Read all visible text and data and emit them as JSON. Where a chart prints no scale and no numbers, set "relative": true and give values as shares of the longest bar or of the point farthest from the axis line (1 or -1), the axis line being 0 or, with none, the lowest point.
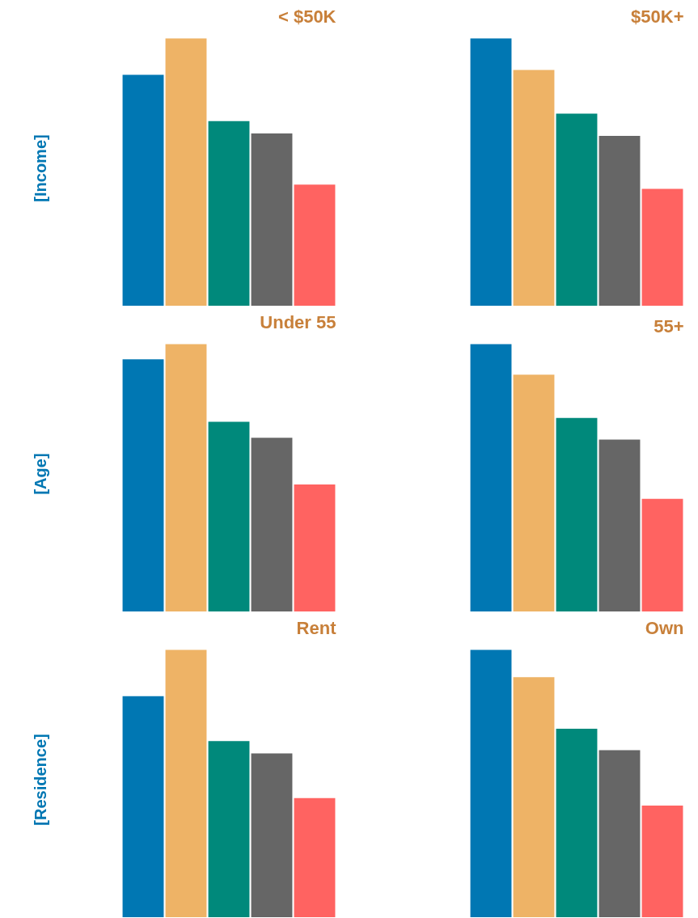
{
  "chart_data": [
    {
      "type": "bar",
      "title": "< $50K",
      "ylabel": "[Income]",
      "relative": true,
      "categories": [
        null,
        null,
        null,
        null,
        null
      ],
      "values": [
        0.864,
        1,
        0.691,
        0.645,
        0.454
      ],
      "colors": [
        "#0077b3",
        "#eeb366",
        "#00897b",
        "#666666",
        "#ff6361"
      ]
    },
    {
      "type": "bar",
      "title": "$50K+",
      "relative": true,
      "categories": [
        null,
        null,
        null,
        null,
        null
      ],
      "values": [
        1,
        0.882,
        0.719,
        0.636,
        0.438
      ],
      "colors": [
        "#0077b3",
        "#eeb366",
        "#00897b",
        "#666666",
        "#ff6361"
      ]
    },
    {
      "type": "bar",
      "title": "Under 55",
      "ylabel": "[Age]",
      "relative": true,
      "categories": [
        null,
        null,
        null,
        null,
        null
      ],
      "values": [
        0.943,
        1,
        0.71,
        0.65,
        0.476
      ],
      "colors": [
        "#0077b3",
        "#eeb366",
        "#00897b",
        "#666666",
        "#ff6361"
      ]
    },
    {
      "type": "bar",
      "title": "55+",
      "relative": true,
      "categories": [
        null,
        null,
        null,
        null,
        null
      ],
      "values": [
        1,
        0.886,
        0.724,
        0.643,
        0.422
      ],
      "colors": [
        "#0077b3",
        "#eeb366",
        "#00897b",
        "#666666",
        "#ff6361"
      ]
    },
    {
      "type": "bar",
      "title": "Rent",
      "ylabel": "[Residence]",
      "relative": true,
      "categories": [
        null,
        null,
        null,
        null,
        null
      ],
      "values": [
        0.827,
        1,
        0.659,
        0.613,
        0.446
      ],
      "colors": [
        "#0077b3",
        "#eeb366",
        "#00897b",
        "#666666",
        "#ff6361"
      ]
    },
    {
      "type": "bar",
      "title": "Own",
      "relative": true,
      "categories": [
        null,
        null,
        null,
        null,
        null
      ],
      "values": [
        1,
        0.898,
        0.705,
        0.625,
        0.418
      ],
      "colors": [
        "#0077b3",
        "#eeb366",
        "#00897b",
        "#666666",
        "#ff6361"
      ]
    }
  ]
}
